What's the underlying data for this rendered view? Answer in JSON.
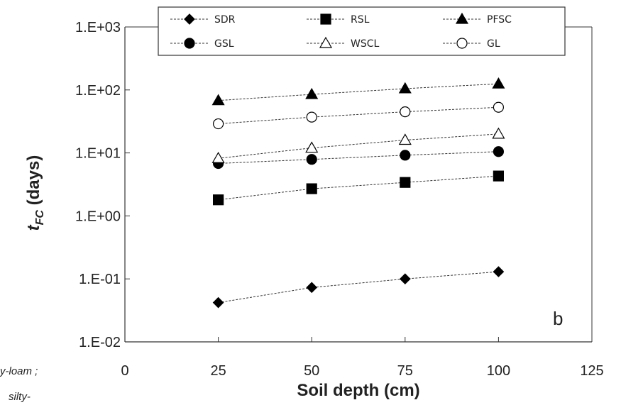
{
  "chart_data": {
    "type": "scatter",
    "ylabel": "t",
    "ylabel_sub": "FC",
    "ylabel_suffix": " (days)",
    "xlabel": "Soil depth (cm)",
    "panel_label": "b",
    "xlim": [
      0,
      125
    ],
    "ylim": [
      0.01,
      1000
    ],
    "yscale": "log",
    "grid": false,
    "legend_position": "top",
    "x_ticks": [
      "0",
      "25",
      "50",
      "75",
      "100",
      "125"
    ],
    "y_ticks": [
      "1.E-02",
      "1.E-01",
      "1.E+00",
      "1.E+01",
      "1.E+02",
      "1.E+03"
    ],
    "series": [
      {
        "name": "SDR",
        "marker": "diamond",
        "fill": "#000000",
        "x": [
          25,
          50,
          75,
          100
        ],
        "y": [
          0.042,
          0.073,
          0.1,
          0.13
        ]
      },
      {
        "name": "RSL",
        "marker": "square",
        "fill": "#000000",
        "x": [
          25,
          50,
          75,
          100
        ],
        "y": [
          1.8,
          2.7,
          3.4,
          4.3
        ]
      },
      {
        "name": "PFSC",
        "marker": "triangle",
        "fill": "#000000",
        "x": [
          25,
          50,
          75,
          100
        ],
        "y": [
          68,
          85,
          105,
          125
        ]
      },
      {
        "name": "GSL",
        "marker": "circle",
        "fill": "#000000",
        "x": [
          25,
          50,
          75,
          100
        ],
        "y": [
          6.8,
          7.9,
          9.2,
          10.5
        ]
      },
      {
        "name": "WSCL",
        "marker": "triangle",
        "fill": "#ffffff",
        "x": [
          25,
          50,
          75,
          100
        ],
        "y": [
          8.2,
          12,
          16,
          20
        ]
      },
      {
        "name": "GL",
        "marker": "circle",
        "fill": "#ffffff",
        "x": [
          25,
          50,
          75,
          100
        ],
        "y": [
          29,
          37,
          45,
          53
        ]
      }
    ]
  },
  "left_fragments": [
    "y-loam ;",
    "silty-"
  ]
}
